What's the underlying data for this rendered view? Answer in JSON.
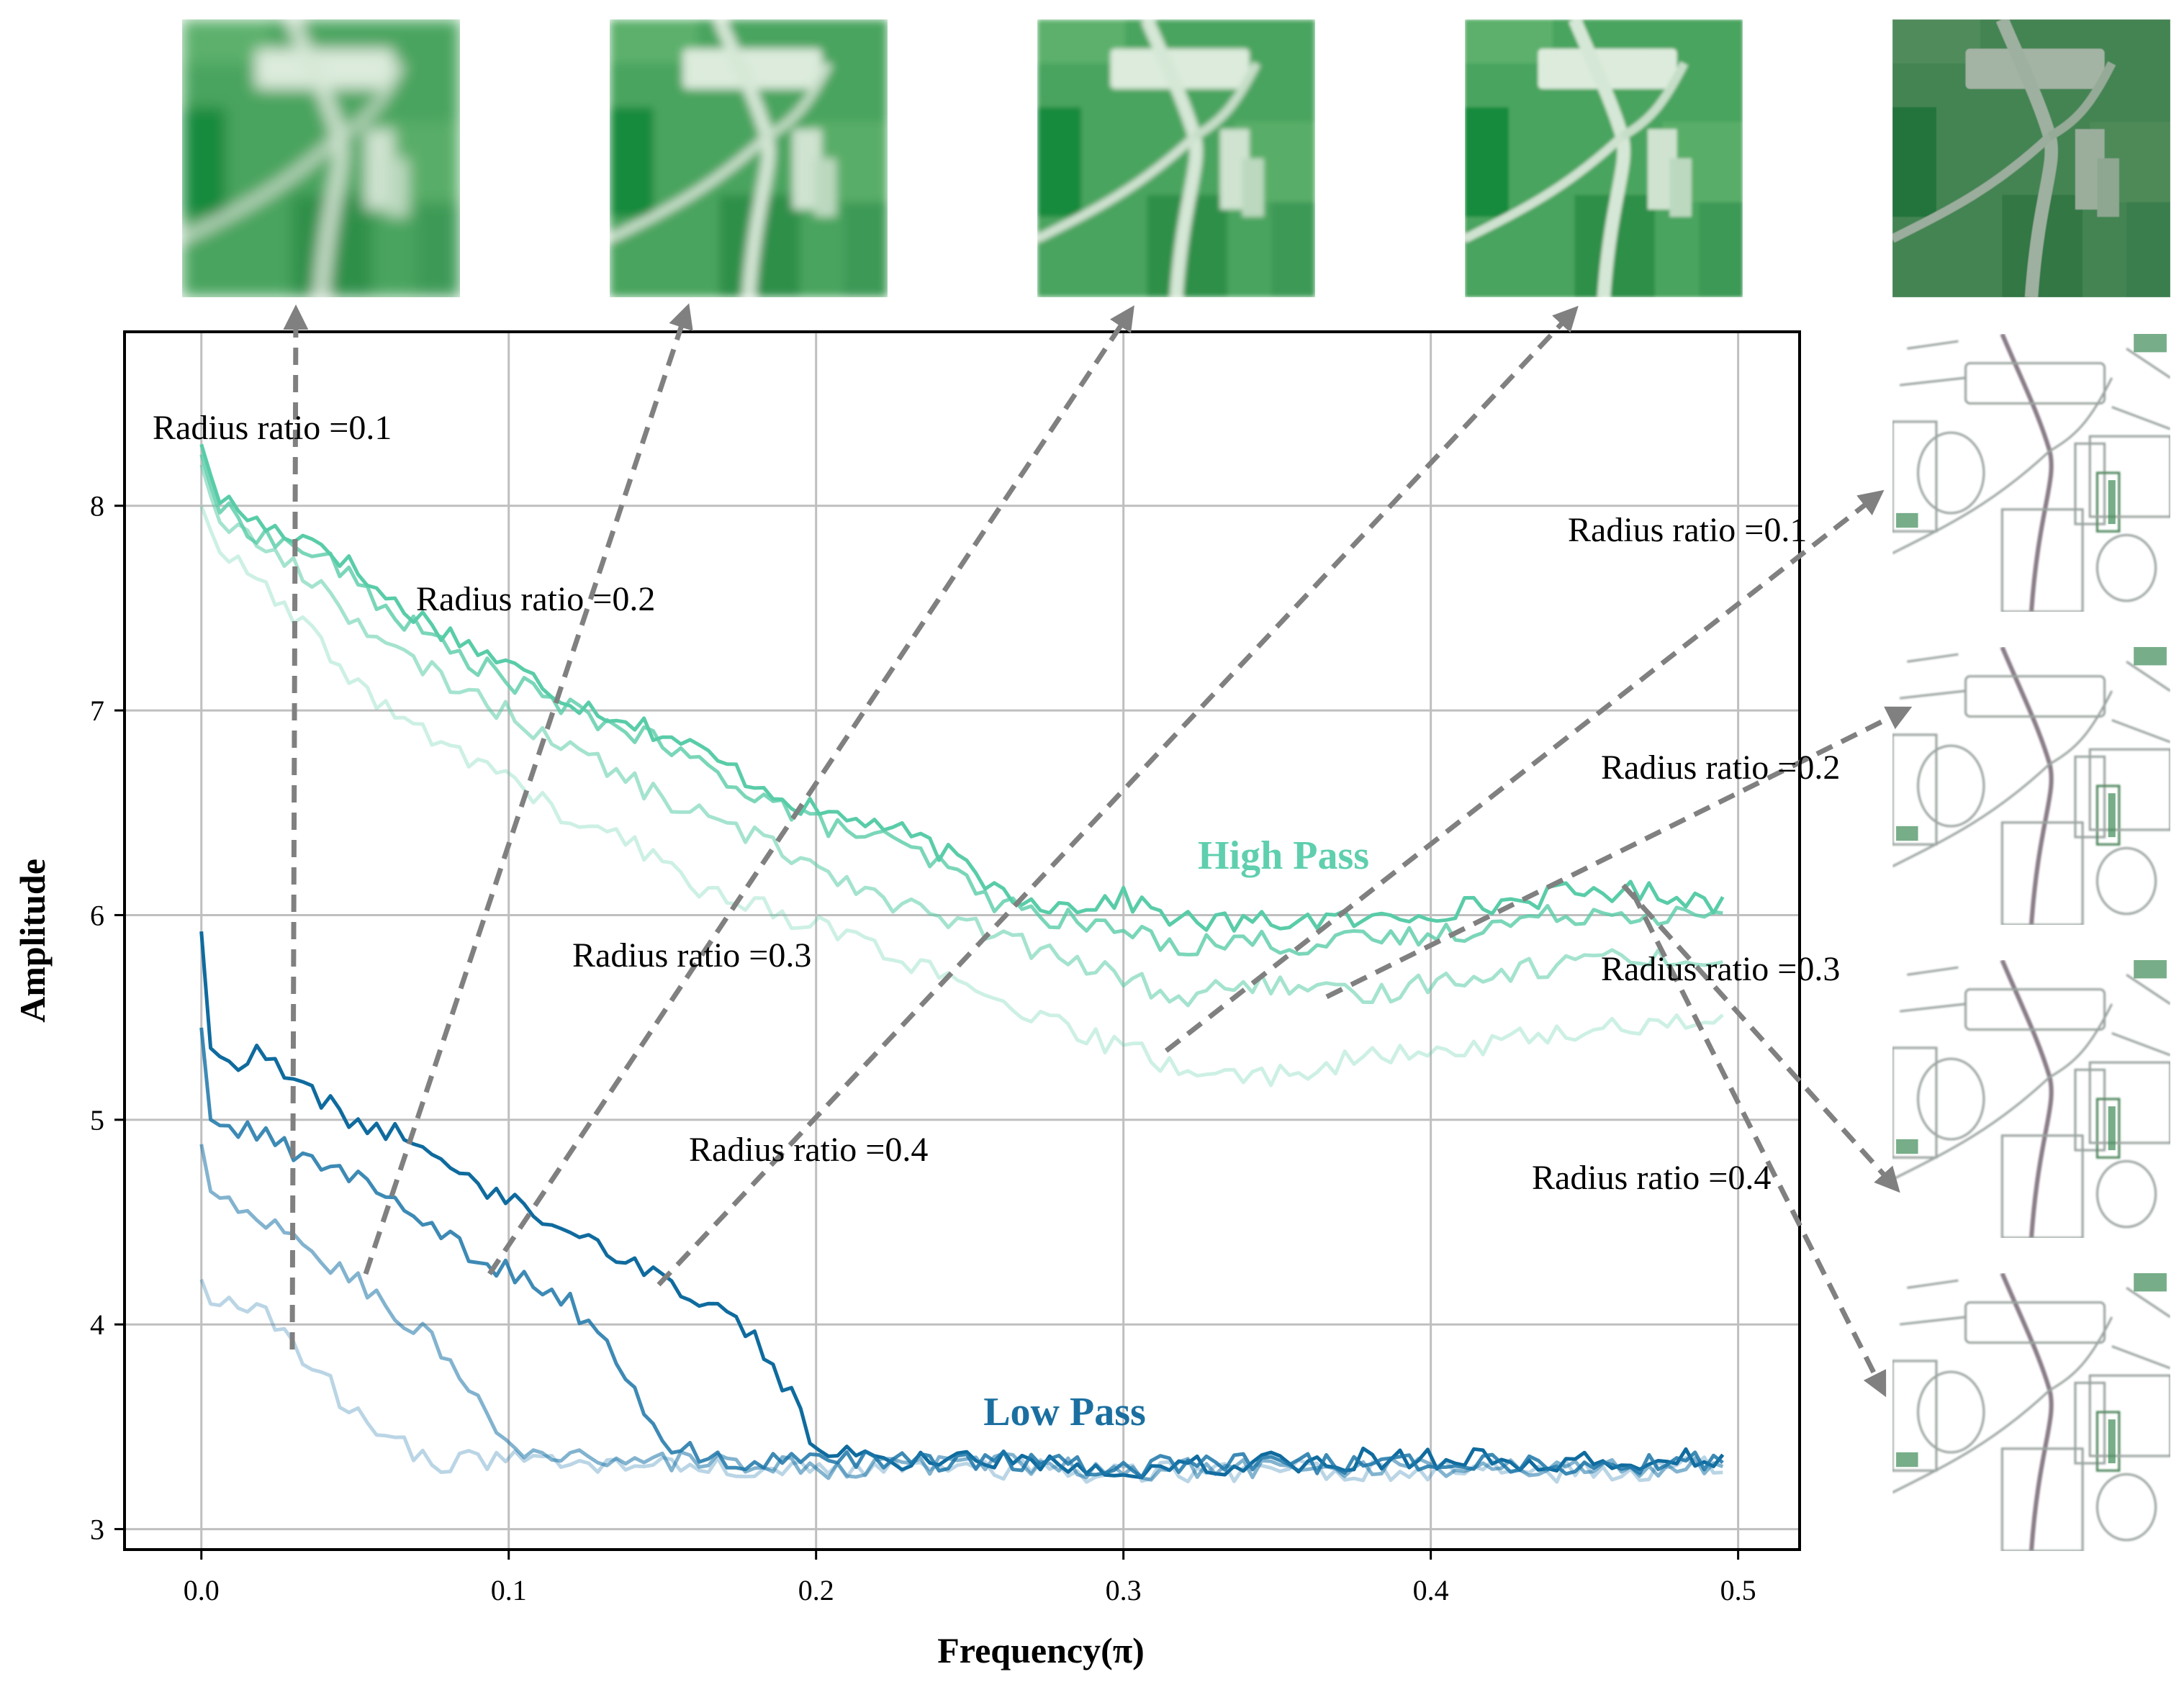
{
  "chart_data": {
    "type": "line",
    "xlabel": "Frequency(π)",
    "ylabel": "Amplitude",
    "xlim": [
      -0.025,
      0.52
    ],
    "ylim": [
      2.9,
      8.85
    ],
    "x_ticks": [
      0.0,
      0.1,
      0.2,
      0.3,
      0.4,
      0.5
    ],
    "x_tick_labels": [
      "0.0",
      "0.1",
      "0.2",
      "0.3",
      "0.4",
      "0.5"
    ],
    "y_ticks": [
      3,
      4,
      5,
      6,
      7,
      8
    ],
    "y_tick_labels": [
      "3",
      "4",
      "5",
      "6",
      "7",
      "8"
    ],
    "grid": true,
    "group_labels": [
      {
        "text": "High Pass",
        "color": "#5fcfae",
        "x": 0.355,
        "y": 6.27
      },
      {
        "text": "Low Pass",
        "color": "#1b6fa0",
        "x": 0.28,
        "y": 3.57
      }
    ],
    "series": [
      {
        "group": "High Pass",
        "radius_ratio": 0.1,
        "color": "#59cca8",
        "opacity": 1.0,
        "keypoints": [
          [
            0,
            8.3
          ],
          [
            0.005,
            8.05
          ],
          [
            0.02,
            7.9
          ],
          [
            0.04,
            7.82
          ],
          [
            0.06,
            7.55
          ],
          [
            0.08,
            7.38
          ],
          [
            0.1,
            7.22
          ],
          [
            0.12,
            7.05
          ],
          [
            0.14,
            6.95
          ],
          [
            0.16,
            6.82
          ],
          [
            0.18,
            6.65
          ],
          [
            0.2,
            6.5
          ],
          [
            0.22,
            6.45
          ],
          [
            0.24,
            6.32
          ],
          [
            0.26,
            6.12
          ],
          [
            0.28,
            6.04
          ],
          [
            0.3,
            6.08
          ],
          [
            0.32,
            5.97
          ],
          [
            0.34,
            5.96
          ],
          [
            0.36,
            5.98
          ],
          [
            0.38,
            5.97
          ],
          [
            0.4,
            6.02
          ],
          [
            0.42,
            6.05
          ],
          [
            0.44,
            6.1
          ],
          [
            0.46,
            6.12
          ],
          [
            0.48,
            6.1
          ],
          [
            0.495,
            6.05
          ]
        ]
      },
      {
        "group": "High Pass",
        "radius_ratio": 0.2,
        "color": "#59cca8",
        "opacity": 0.8,
        "keypoints": [
          [
            0,
            8.25
          ],
          [
            0.005,
            8.0
          ],
          [
            0.02,
            7.85
          ],
          [
            0.04,
            7.75
          ],
          [
            0.06,
            7.5
          ],
          [
            0.08,
            7.3
          ],
          [
            0.1,
            7.15
          ],
          [
            0.12,
            7.0
          ],
          [
            0.14,
            6.9
          ],
          [
            0.16,
            6.75
          ],
          [
            0.18,
            6.6
          ],
          [
            0.2,
            6.45
          ],
          [
            0.22,
            6.38
          ],
          [
            0.24,
            6.25
          ],
          [
            0.26,
            6.05
          ],
          [
            0.28,
            5.98
          ],
          [
            0.3,
            5.92
          ],
          [
            0.32,
            5.85
          ],
          [
            0.34,
            5.88
          ],
          [
            0.36,
            5.85
          ],
          [
            0.38,
            5.88
          ],
          [
            0.4,
            5.9
          ],
          [
            0.42,
            5.95
          ],
          [
            0.44,
            6.0
          ],
          [
            0.46,
            6.02
          ],
          [
            0.48,
            6.0
          ],
          [
            0.495,
            5.98
          ]
        ]
      },
      {
        "group": "High Pass",
        "radius_ratio": 0.3,
        "color": "#59cca8",
        "opacity": 0.55,
        "keypoints": [
          [
            0,
            8.2
          ],
          [
            0.005,
            7.95
          ],
          [
            0.02,
            7.8
          ],
          [
            0.04,
            7.6
          ],
          [
            0.06,
            7.3
          ],
          [
            0.08,
            7.15
          ],
          [
            0.1,
            6.98
          ],
          [
            0.12,
            6.82
          ],
          [
            0.14,
            6.65
          ],
          [
            0.16,
            6.5
          ],
          [
            0.18,
            6.38
          ],
          [
            0.2,
            6.25
          ],
          [
            0.22,
            6.1
          ],
          [
            0.24,
            5.98
          ],
          [
            0.26,
            5.9
          ],
          [
            0.28,
            5.78
          ],
          [
            0.3,
            5.7
          ],
          [
            0.32,
            5.58
          ],
          [
            0.34,
            5.68
          ],
          [
            0.36,
            5.62
          ],
          [
            0.38,
            5.6
          ],
          [
            0.4,
            5.68
          ],
          [
            0.42,
            5.72
          ],
          [
            0.44,
            5.75
          ],
          [
            0.46,
            5.82
          ],
          [
            0.48,
            5.78
          ],
          [
            0.495,
            5.75
          ]
        ]
      },
      {
        "group": "High Pass",
        "radius_ratio": 0.4,
        "color": "#59cca8",
        "opacity": 0.3,
        "keypoints": [
          [
            0,
            8.0
          ],
          [
            0.005,
            7.8
          ],
          [
            0.02,
            7.6
          ],
          [
            0.04,
            7.3
          ],
          [
            0.06,
            7.0
          ],
          [
            0.08,
            6.82
          ],
          [
            0.1,
            6.68
          ],
          [
            0.12,
            6.45
          ],
          [
            0.14,
            6.35
          ],
          [
            0.16,
            6.15
          ],
          [
            0.18,
            6.05
          ],
          [
            0.2,
            5.95
          ],
          [
            0.22,
            5.85
          ],
          [
            0.24,
            5.7
          ],
          [
            0.26,
            5.55
          ],
          [
            0.28,
            5.45
          ],
          [
            0.3,
            5.35
          ],
          [
            0.32,
            5.25
          ],
          [
            0.34,
            5.2
          ],
          [
            0.36,
            5.25
          ],
          [
            0.38,
            5.3
          ],
          [
            0.4,
            5.32
          ],
          [
            0.42,
            5.38
          ],
          [
            0.44,
            5.42
          ],
          [
            0.46,
            5.45
          ],
          [
            0.48,
            5.48
          ],
          [
            0.495,
            5.5
          ]
        ]
      },
      {
        "group": "Low Pass",
        "radius_ratio": 0.4,
        "color": "#0f6b9e",
        "opacity": 1.0,
        "keypoints": [
          [
            0,
            5.92
          ],
          [
            0.003,
            5.35
          ],
          [
            0.01,
            5.28
          ],
          [
            0.02,
            5.32
          ],
          [
            0.03,
            5.18
          ],
          [
            0.04,
            5.1
          ],
          [
            0.05,
            4.98
          ],
          [
            0.06,
            4.95
          ],
          [
            0.08,
            4.8
          ],
          [
            0.1,
            4.6
          ],
          [
            0.12,
            4.48
          ],
          [
            0.14,
            4.3
          ],
          [
            0.16,
            4.15
          ],
          [
            0.18,
            3.95
          ],
          [
            0.19,
            3.7
          ],
          [
            0.2,
            3.4
          ],
          [
            0.22,
            3.33
          ],
          [
            0.25,
            3.35
          ],
          [
            0.3,
            3.3
          ],
          [
            0.35,
            3.33
          ],
          [
            0.4,
            3.35
          ],
          [
            0.45,
            3.32
          ],
          [
            0.495,
            3.36
          ]
        ]
      },
      {
        "group": "Low Pass",
        "radius_ratio": 0.3,
        "color": "#1b75a8",
        "opacity": 0.85,
        "keypoints": [
          [
            0,
            5.45
          ],
          [
            0.003,
            5.0
          ],
          [
            0.01,
            4.95
          ],
          [
            0.02,
            4.92
          ],
          [
            0.03,
            4.85
          ],
          [
            0.04,
            4.78
          ],
          [
            0.05,
            4.72
          ],
          [
            0.06,
            4.65
          ],
          [
            0.08,
            4.42
          ],
          [
            0.1,
            4.25
          ],
          [
            0.12,
            4.1
          ],
          [
            0.13,
            3.95
          ],
          [
            0.14,
            3.7
          ],
          [
            0.15,
            3.4
          ],
          [
            0.17,
            3.33
          ],
          [
            0.2,
            3.32
          ],
          [
            0.25,
            3.34
          ],
          [
            0.3,
            3.3
          ],
          [
            0.35,
            3.32
          ],
          [
            0.4,
            3.33
          ],
          [
            0.45,
            3.31
          ],
          [
            0.495,
            3.33
          ]
        ]
      },
      {
        "group": "Low Pass",
        "radius_ratio": 0.2,
        "color": "#1b75a8",
        "opacity": 0.55,
        "keypoints": [
          [
            0,
            4.88
          ],
          [
            0.003,
            4.65
          ],
          [
            0.01,
            4.58
          ],
          [
            0.02,
            4.48
          ],
          [
            0.03,
            4.45
          ],
          [
            0.04,
            4.3
          ],
          [
            0.05,
            4.22
          ],
          [
            0.06,
            4.1
          ],
          [
            0.07,
            3.98
          ],
          [
            0.08,
            3.85
          ],
          [
            0.09,
            3.6
          ],
          [
            0.1,
            3.4
          ],
          [
            0.12,
            3.35
          ],
          [
            0.15,
            3.33
          ],
          [
            0.2,
            3.3
          ],
          [
            0.25,
            3.32
          ],
          [
            0.3,
            3.29
          ],
          [
            0.35,
            3.31
          ],
          [
            0.4,
            3.3
          ],
          [
            0.45,
            3.3
          ],
          [
            0.495,
            3.32
          ]
        ]
      },
      {
        "group": "Low Pass",
        "radius_ratio": 0.1,
        "color": "#1b75a8",
        "opacity": 0.3,
        "keypoints": [
          [
            0,
            4.22
          ],
          [
            0.003,
            4.1
          ],
          [
            0.01,
            4.08
          ],
          [
            0.02,
            4.05
          ],
          [
            0.03,
            3.88
          ],
          [
            0.04,
            3.75
          ],
          [
            0.05,
            3.55
          ],
          [
            0.06,
            3.45
          ],
          [
            0.07,
            3.38
          ],
          [
            0.08,
            3.32
          ],
          [
            0.1,
            3.35
          ],
          [
            0.12,
            3.32
          ],
          [
            0.15,
            3.3
          ],
          [
            0.2,
            3.28
          ],
          [
            0.25,
            3.3
          ],
          [
            0.3,
            3.27
          ],
          [
            0.35,
            3.29
          ],
          [
            0.4,
            3.28
          ],
          [
            0.45,
            3.28
          ],
          [
            0.495,
            3.3
          ]
        ]
      }
    ],
    "annotations_left": [
      {
        "text": "Radius ratio =0.1",
        "x": -0.017,
        "y": 8.37
      },
      {
        "text": "Radius ratio =0.2",
        "x": 0.069,
        "y": 7.53
      },
      {
        "text": "Radius ratio =0.3",
        "x": 0.121,
        "y": 5.78
      },
      {
        "text": "Radius ratio =0.4",
        "x": 0.159,
        "y": 4.82
      }
    ],
    "annotations_right": [
      {
        "text": "Radius ratio =0.1"
      },
      {
        "text": "Radius ratio =0.2"
      },
      {
        "text": "Radius ratio =0.3"
      },
      {
        "text": "Radius ratio =0.4"
      }
    ]
  },
  "colors": {
    "high_pass": "#5fcfae",
    "low_pass": "#1b6fa0",
    "arrow": "#808080",
    "grid": "#bfbfbf"
  },
  "thumbnails": {
    "low_pass_row": [
      "low-pass-ratio-0.1",
      "low-pass-ratio-0.2",
      "low-pass-ratio-0.3",
      "low-pass-ratio-0.4",
      "original-image"
    ],
    "high_pass_column": [
      "high-pass-ratio-0.1",
      "high-pass-ratio-0.2",
      "high-pass-ratio-0.3",
      "high-pass-ratio-0.4"
    ]
  }
}
